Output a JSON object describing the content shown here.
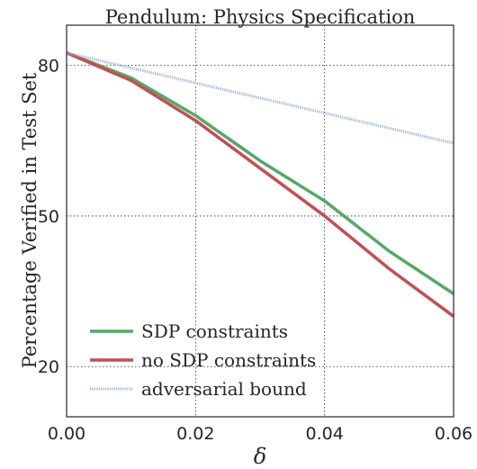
{
  "chart_data": {
    "type": "line",
    "title": "Pendulum: Physics Specification",
    "xlabel": "δ",
    "ylabel": "Percentage Verified in Test Set",
    "x": [
      0.0,
      0.01,
      0.02,
      0.03,
      0.04,
      0.05,
      0.06
    ],
    "xlim": [
      0.0,
      0.06
    ],
    "ylim": [
      10,
      88
    ],
    "xticks": [
      "0.00",
      "0.02",
      "0.04",
      "0.06"
    ],
    "yticks": [
      "20",
      "50",
      "80"
    ],
    "ytick_values": [
      20,
      50,
      80
    ],
    "xtick_values": [
      0.0,
      0.02,
      0.04,
      0.06
    ],
    "grid": true,
    "legend_position": "bottom-left",
    "series": [
      {
        "name": "SDP constraints",
        "color": "#55a868",
        "style": "solid",
        "values": [
          82.5,
          77.5,
          70.0,
          61.0,
          53.0,
          43.0,
          34.5
        ]
      },
      {
        "name": "no SDP constraints",
        "color": "#c44e52",
        "style": "solid",
        "values": [
          82.5,
          77.0,
          69.0,
          59.5,
          50.0,
          39.5,
          30.0
        ]
      },
      {
        "name": "adversarial bound",
        "color": "#9db4d6",
        "style": "dotted",
        "values": [
          82.5,
          79.5,
          76.5,
          73.5,
          70.5,
          67.5,
          64.5
        ]
      }
    ]
  }
}
